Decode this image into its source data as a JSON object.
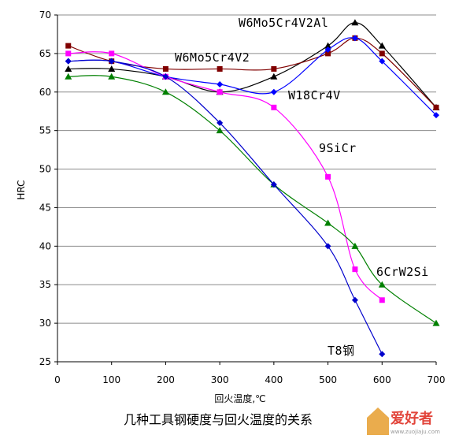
{
  "caption": "几种工具钢硬度与回火温度的关系",
  "watermark": {
    "brand": "爱好者",
    "url": "www.zuojiaju.com"
  },
  "chart_data": {
    "type": "line",
    "title": "",
    "xlabel": "回火温度,℃",
    "ylabel": "HRC",
    "xlim": [
      0,
      700
    ],
    "ylim": [
      25,
      70
    ],
    "x_ticks": [
      0,
      100,
      200,
      300,
      400,
      500,
      600,
      700
    ],
    "y_ticks": [
      25,
      30,
      35,
      40,
      45,
      50,
      55,
      60,
      65,
      70
    ],
    "grid": "horizontal",
    "series": [
      {
        "name": "W6Mo5Cr4V2Al",
        "color": "#000000",
        "marker": "triangle",
        "points": [
          [
            20,
            63
          ],
          [
            100,
            63
          ],
          [
            200,
            62
          ],
          [
            300,
            60
          ],
          [
            400,
            62
          ],
          [
            500,
            66
          ],
          [
            550,
            69
          ],
          [
            600,
            66
          ],
          [
            700,
            58
          ]
        ]
      },
      {
        "name": "W6Mo5Cr4V2",
        "color": "#800000",
        "marker": "square",
        "points": [
          [
            20,
            66
          ],
          [
            100,
            64
          ],
          [
            200,
            63
          ],
          [
            300,
            63
          ],
          [
            400,
            63
          ],
          [
            500,
            65
          ],
          [
            550,
            67
          ],
          [
            600,
            65
          ],
          [
            700,
            58
          ]
        ]
      },
      {
        "name": "W18Cr4V",
        "color": "#0000ff",
        "marker": "diamond",
        "points": [
          [
            20,
            64
          ],
          [
            100,
            64
          ],
          [
            200,
            62
          ],
          [
            300,
            61
          ],
          [
            400,
            60
          ],
          [
            500,
            65.5
          ],
          [
            550,
            67
          ],
          [
            600,
            64
          ],
          [
            700,
            57
          ]
        ]
      },
      {
        "name": "9SiCr",
        "color": "#ff00ff",
        "marker": "square",
        "points": [
          [
            20,
            65
          ],
          [
            100,
            65
          ],
          [
            200,
            62
          ],
          [
            300,
            60
          ],
          [
            400,
            58
          ],
          [
            500,
            49
          ],
          [
            550,
            37
          ],
          [
            600,
            33
          ]
        ]
      },
      {
        "name": "6CrW2Si",
        "color": "#008000",
        "marker": "triangle",
        "points": [
          [
            20,
            62
          ],
          [
            100,
            62
          ],
          [
            200,
            60
          ],
          [
            300,
            55
          ],
          [
            400,
            48
          ],
          [
            500,
            43
          ],
          [
            550,
            40
          ],
          [
            600,
            35
          ],
          [
            700,
            30
          ]
        ]
      },
      {
        "name": "T8钢",
        "color": "#0000cc",
        "marker": "diamond",
        "points": [
          [
            20,
            64
          ],
          [
            100,
            64
          ],
          [
            200,
            62
          ],
          [
            300,
            56
          ],
          [
            400,
            48
          ],
          [
            500,
            40
          ],
          [
            550,
            33
          ],
          [
            600,
            26
          ]
        ]
      }
    ]
  }
}
